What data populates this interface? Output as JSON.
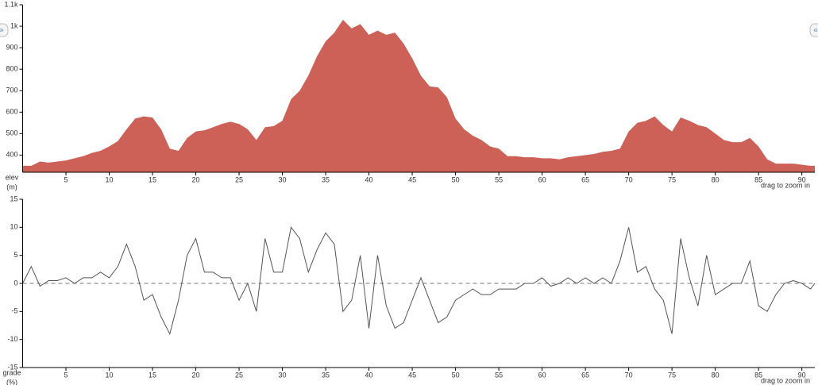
{
  "chart_data": [
    {
      "type": "area",
      "y_label": "elev",
      "y_unit": "(m)",
      "hint": "drag to zoom in",
      "color": "#cd6158",
      "x": [
        0,
        1,
        2,
        3,
        4,
        5,
        6,
        7,
        8,
        9,
        10,
        11,
        12,
        13,
        14,
        15,
        16,
        17,
        18,
        19,
        20,
        21,
        22,
        23,
        24,
        25,
        26,
        27,
        28,
        29,
        30,
        31,
        32,
        33,
        34,
        35,
        36,
        37,
        38,
        39,
        40,
        41,
        42,
        43,
        44,
        45,
        46,
        47,
        48,
        49,
        50,
        51,
        52,
        53,
        54,
        55,
        56,
        57,
        58,
        59,
        60,
        61,
        62,
        63,
        64,
        65,
        66,
        67,
        68,
        69,
        70,
        71,
        72,
        73,
        74,
        75,
        76,
        77,
        78,
        79,
        80,
        81,
        82,
        83,
        84,
        85,
        86,
        87,
        88,
        89,
        90,
        91,
        91.5
      ],
      "values": [
        350,
        350,
        370,
        365,
        370,
        375,
        385,
        395,
        410,
        420,
        440,
        465,
        520,
        570,
        580,
        575,
        520,
        430,
        420,
        480,
        510,
        515,
        530,
        545,
        555,
        545,
        520,
        470,
        530,
        535,
        560,
        660,
        700,
        770,
        860,
        930,
        970,
        1030,
        990,
        1010,
        960,
        980,
        960,
        970,
        920,
        850,
        770,
        720,
        715,
        670,
        570,
        520,
        490,
        470,
        440,
        430,
        395,
        395,
        390,
        390,
        385,
        385,
        380,
        390,
        395,
        400,
        405,
        415,
        420,
        430,
        510,
        550,
        560,
        580,
        540,
        510,
        575,
        560,
        540,
        530,
        500,
        470,
        460,
        460,
        480,
        440,
        380,
        360,
        360,
        360,
        355,
        350,
        350
      ],
      "xlim": [
        0,
        91.5
      ],
      "ylim": [
        320,
        1100
      ],
      "xticks": [
        5,
        10,
        15,
        20,
        25,
        30,
        35,
        40,
        45,
        50,
        55,
        60,
        65,
        70,
        75,
        80,
        85,
        90
      ],
      "yticks": [
        400,
        500,
        600,
        700,
        800,
        900,
        {
          "value": 1000,
          "label": "1k"
        },
        {
          "value": 1100,
          "label": "1.1k"
        }
      ]
    },
    {
      "type": "line",
      "y_label": "grade",
      "y_unit": "(%)",
      "hint": "drag to zoom in",
      "color": "#555555",
      "zero_line": true,
      "x": [
        0,
        1,
        2,
        3,
        4,
        5,
        6,
        7,
        8,
        9,
        10,
        11,
        12,
        13,
        14,
        15,
        16,
        17,
        18,
        19,
        20,
        21,
        22,
        23,
        24,
        25,
        26,
        27,
        28,
        29,
        30,
        31,
        32,
        33,
        34,
        35,
        36,
        37,
        38,
        39,
        40,
        41,
        42,
        43,
        44,
        45,
        46,
        47,
        48,
        49,
        50,
        51,
        52,
        53,
        54,
        55,
        56,
        57,
        58,
        59,
        60,
        61,
        62,
        63,
        64,
        65,
        66,
        67,
        68,
        69,
        70,
        71,
        72,
        73,
        74,
        75,
        76,
        77,
        78,
        79,
        80,
        81,
        82,
        83,
        84,
        85,
        86,
        87,
        88,
        89,
        90,
        91,
        91.5
      ],
      "values": [
        0,
        3,
        -0.5,
        0.5,
        0.5,
        1,
        0,
        1,
        1,
        2,
        1,
        3,
        7,
        3,
        -3,
        -2,
        -6,
        -9,
        -3,
        5,
        8,
        2,
        2,
        1,
        1,
        -3,
        0,
        -5,
        8,
        2,
        2,
        10,
        8,
        2,
        6,
        9,
        7,
        -5,
        -3,
        5,
        -8,
        5,
        -4,
        -8,
        -7,
        -3,
        1,
        -3,
        -7,
        -6,
        -3,
        -2,
        -1,
        -2,
        -2,
        -1,
        -1,
        -1,
        0,
        0,
        1,
        -0.5,
        0,
        1,
        0,
        1,
        0,
        1,
        0,
        4,
        10,
        2,
        3,
        -1,
        -3,
        -9,
        8,
        1,
        -4,
        5,
        -2,
        -1,
        0,
        0,
        4,
        -4,
        -5,
        -2,
        0,
        0.5,
        0,
        -1,
        0
      ],
      "xlim": [
        0,
        91.5
      ],
      "ylim": [
        -15,
        15
      ],
      "xticks": [
        5,
        10,
        15,
        20,
        25,
        30,
        35,
        40,
        45,
        50,
        55,
        60,
        65,
        70,
        75,
        80,
        85,
        90
      ],
      "yticks": [
        -15,
        -10,
        -5,
        0,
        5,
        10,
        15
      ]
    }
  ]
}
